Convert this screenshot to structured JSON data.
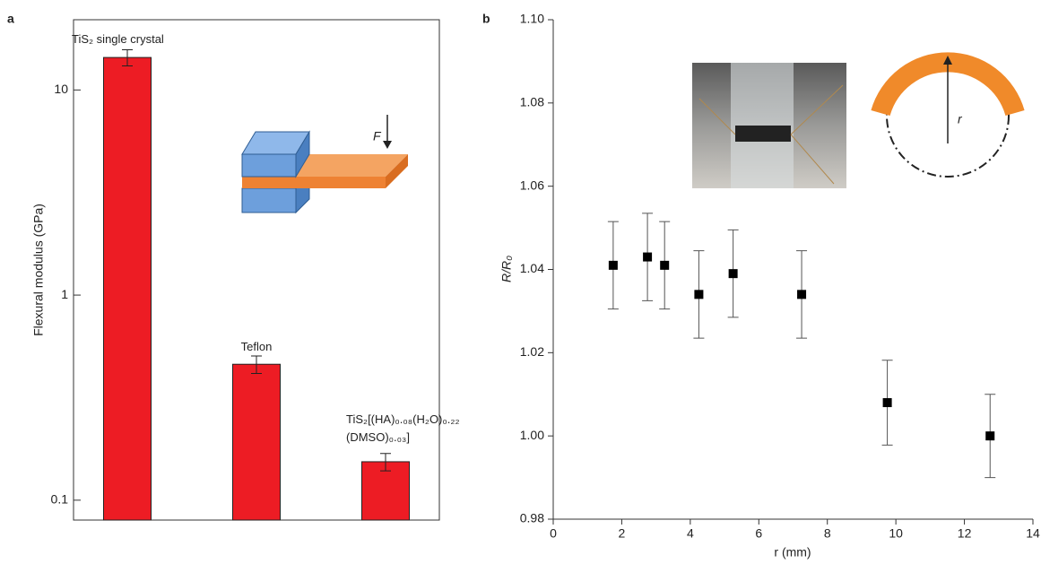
{
  "chart_data": [
    {
      "type": "bar",
      "panel": "a",
      "y_label": "Flexural modulus (GPa)",
      "log_scale": true,
      "categories": [
        "TiS₂ single crystal",
        "Teflon",
        "TiS₂[(HA)₀.₀₈(H₂O)₀.₂₂ (DMSO)₀.₀₃]"
      ],
      "values": [
        14.4,
        0.46,
        0.154
      ],
      "errors": [
        1.3,
        0.045,
        0.015
      ],
      "color": "#ed1c24",
      "ylim": [
        0.08,
        22
      ],
      "yticks": [
        0.1,
        1,
        10
      ],
      "annotations": [
        "F"
      ]
    },
    {
      "type": "scatter",
      "panel": "b",
      "x_label": "r (mm)",
      "y_label": "R/R₀",
      "series": [
        {
          "color": "#000000",
          "x": [
            1.75,
            2.75,
            3.25,
            4.25,
            5.25,
            7.25,
            9.75,
            12.75
          ],
          "values": [
            1.041,
            1.043,
            1.041,
            1.034,
            1.039,
            1.034,
            1.008,
            1.0
          ],
          "errors": [
            0.0105,
            0.0105,
            0.0105,
            0.0105,
            0.0105,
            0.0105,
            0.0102,
            0.01
          ]
        }
      ],
      "xlim": [
        0,
        14
      ],
      "xticks": [
        0,
        2,
        4,
        6,
        8,
        10,
        12,
        14
      ],
      "ylim": [
        0.98,
        1.1
      ],
      "yticks": [
        0.98,
        {
          "value": 1.0,
          "label": "1.00"
        },
        1.02,
        1.04,
        1.06,
        1.08,
        {
          "value": 1.1,
          "label": "1.10"
        }
      ],
      "annotations": [
        "r"
      ]
    }
  ]
}
